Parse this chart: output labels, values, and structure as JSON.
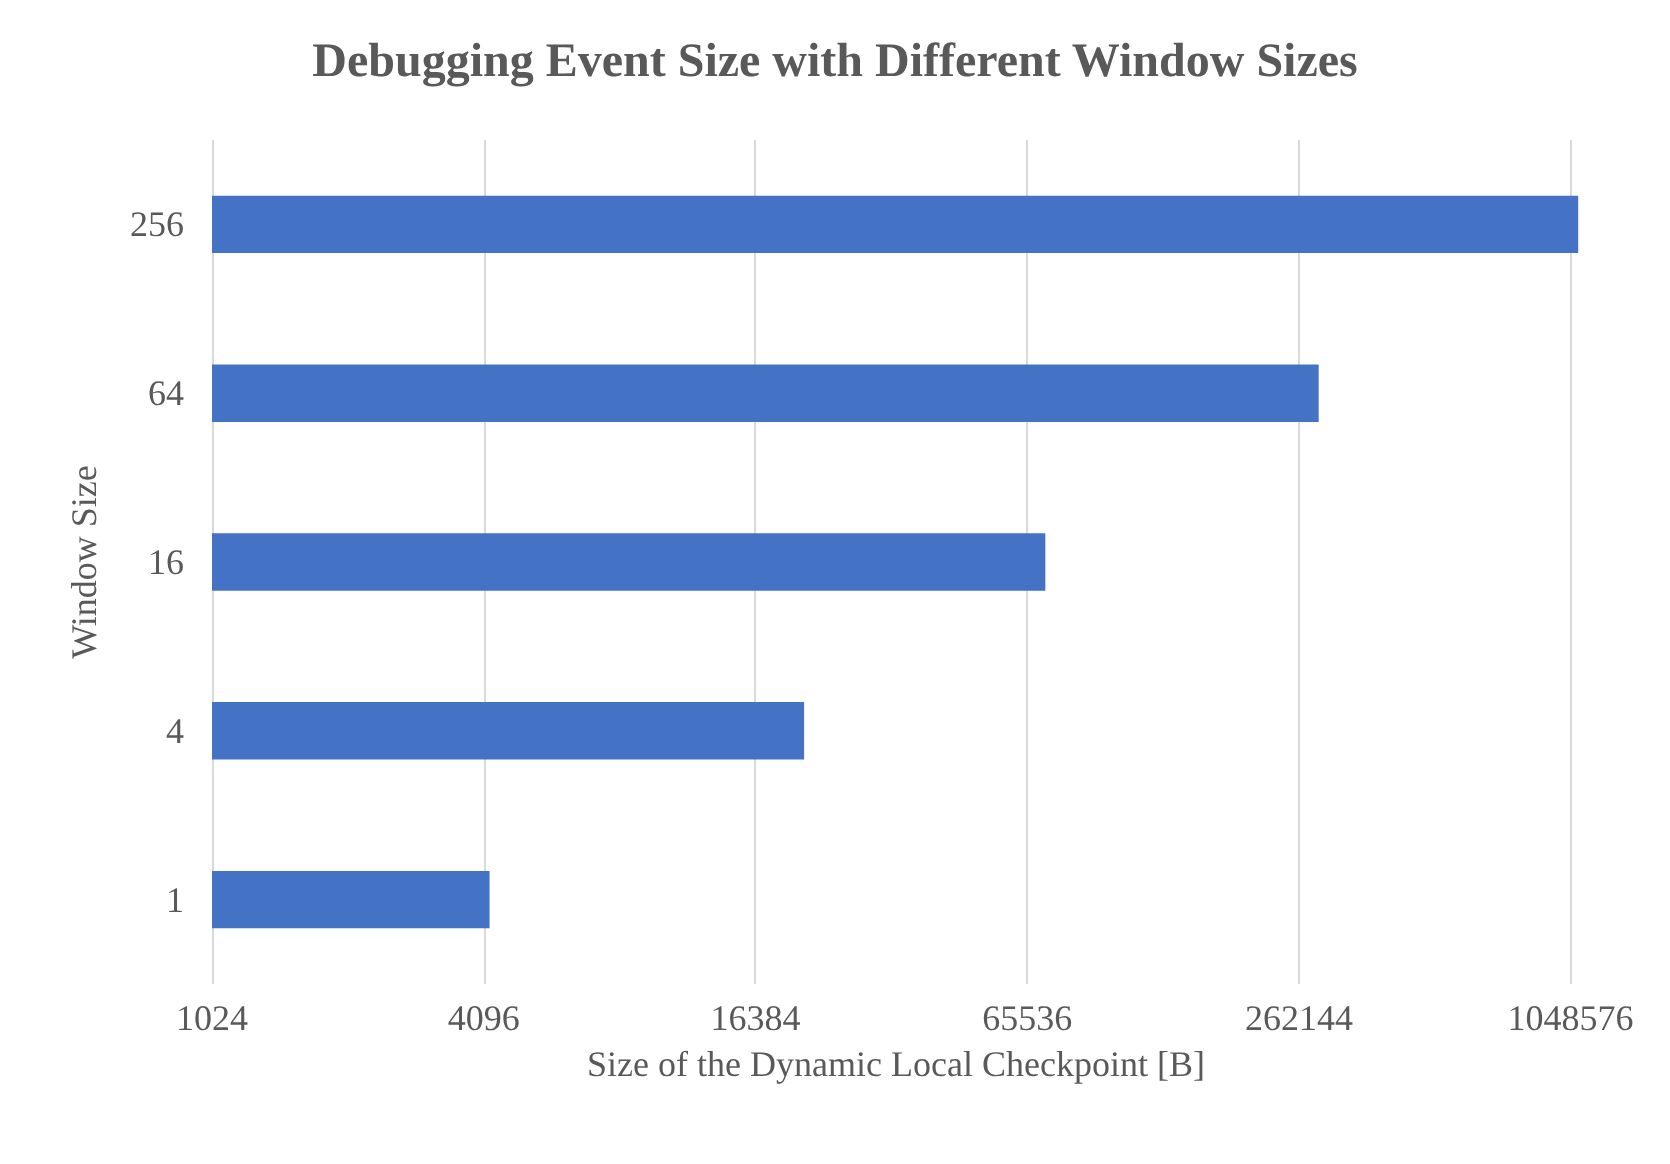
{
  "chart_data": {
    "type": "bar",
    "orientation": "horizontal",
    "title": "Debugging Event Size with Different Window Sizes",
    "xlabel": "Size of the Dynamic Local Checkpoint [B]",
    "ylabel": "Window Size",
    "categories": [
      "256",
      "64",
      "16",
      "4",
      "1"
    ],
    "values": [
      1090000,
      290000,
      71900,
      21000,
      4220
    ],
    "color": "#4472c4",
    "log": "x",
    "xlim": [
      1024,
      1100000
    ],
    "xticks": [
      1024,
      4096,
      16384,
      65536,
      262144,
      1048576
    ],
    "grid": "x"
  }
}
